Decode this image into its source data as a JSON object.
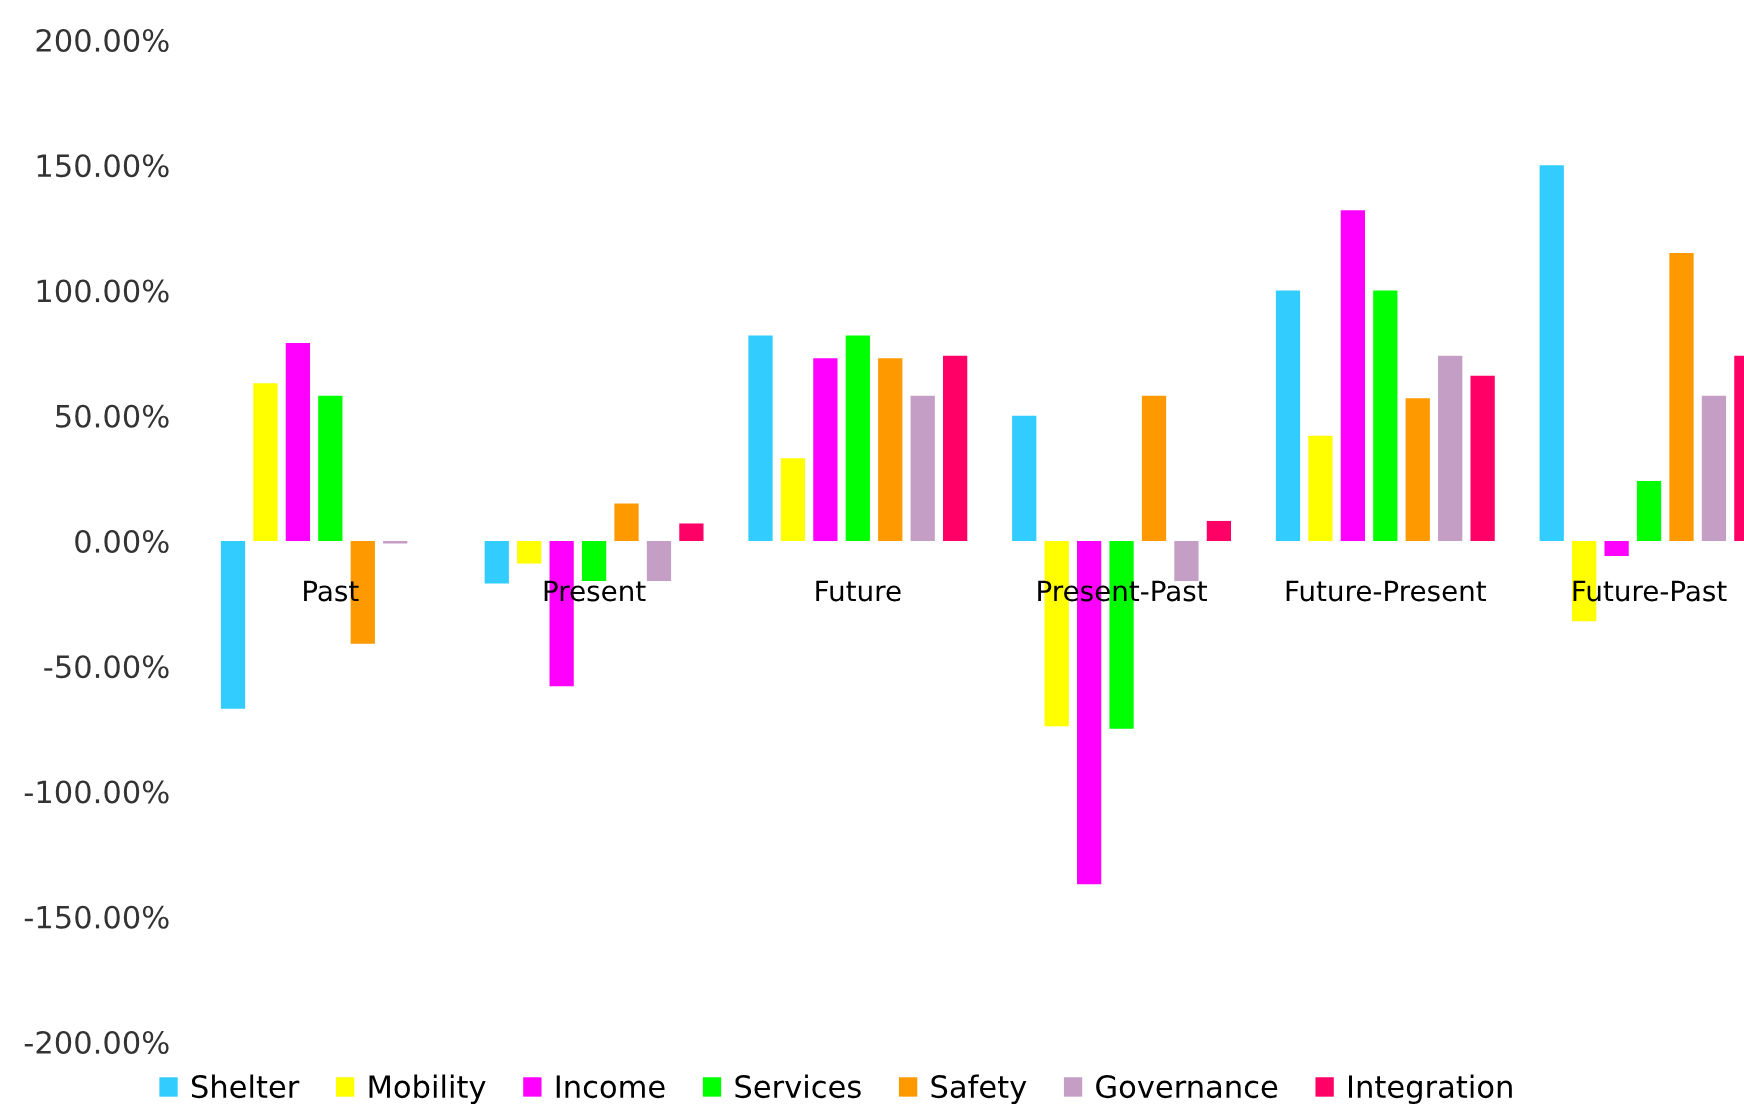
{
  "chart_data": {
    "type": "bar",
    "categories": [
      "Past",
      "Present",
      "Future",
      "Present-Past",
      "Future-Present",
      "Future-Past"
    ],
    "series": [
      {
        "name": "Shelter",
        "color": "#33ccff",
        "values": [
          -67,
          -17,
          82,
          50,
          100,
          150
        ]
      },
      {
        "name": "Mobility",
        "color": "#ffff00",
        "values": [
          63,
          -9,
          33,
          -74,
          42,
          -32
        ]
      },
      {
        "name": "Income",
        "color": "#ff00ff",
        "values": [
          79,
          -58,
          73,
          -137,
          132,
          -6
        ]
      },
      {
        "name": "Services",
        "color": "#00ff00",
        "values": [
          58,
          -16,
          82,
          -75,
          100,
          24
        ]
      },
      {
        "name": "Safety",
        "color": "#ff9900",
        "values": [
          -41,
          15,
          73,
          58,
          57,
          115
        ]
      },
      {
        "name": "Governance",
        "color": "#c59ec5",
        "values": [
          -1,
          -16,
          58,
          -16,
          74,
          58
        ]
      },
      {
        "name": "Integration",
        "color": "#ff0066",
        "values": [
          0,
          7,
          74,
          8,
          66,
          74
        ]
      }
    ],
    "ylim": [
      -200,
      200
    ],
    "yticks": [
      {
        "value": -200,
        "label": "-200.00%"
      },
      {
        "value": -150,
        "label": "-150.00%"
      },
      {
        "value": -100,
        "label": "-100.00%"
      },
      {
        "value": -50,
        "label": "-50.00%"
      },
      {
        "value": 0,
        "label": "0.00%"
      },
      {
        "value": 50,
        "label": "50.00%"
      },
      {
        "value": 100,
        "label": "100.00%"
      },
      {
        "value": 150,
        "label": "150.00%"
      },
      {
        "value": 200,
        "label": "200.00%"
      }
    ],
    "grid": false,
    "legend": "bottom"
  }
}
